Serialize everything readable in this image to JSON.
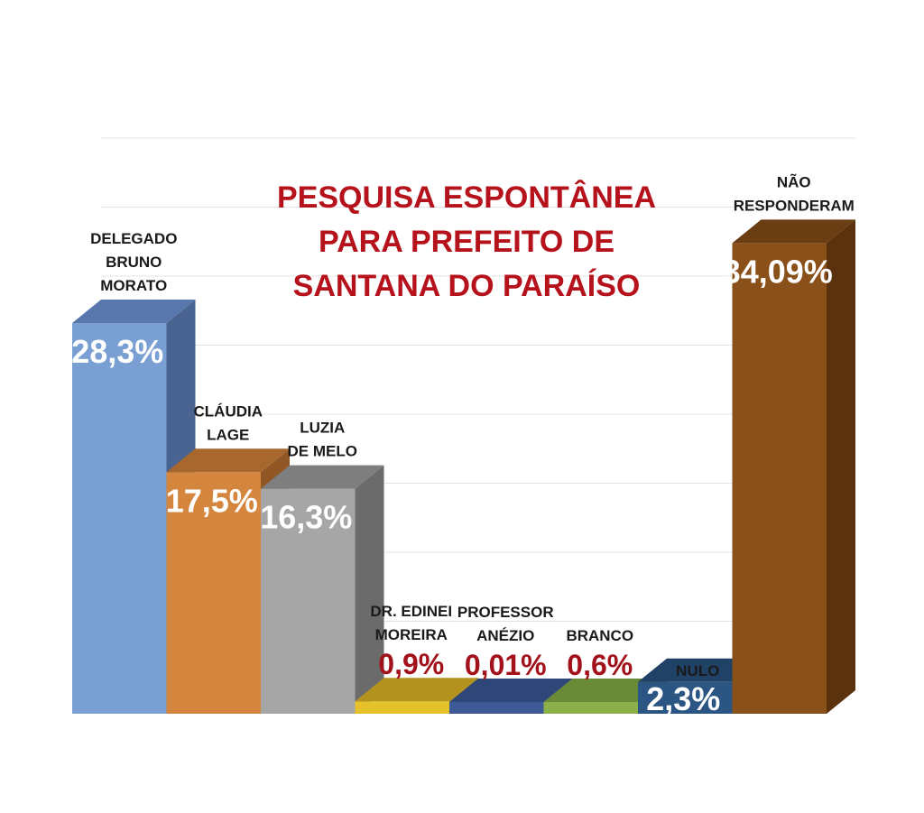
{
  "chart_data": {
    "type": "bar",
    "title_lines": [
      "PESQUISA ESPONTÂNEA",
      "PARA PREFEITO DE",
      "SANTANA DO PARAÍSO"
    ],
    "xlabel": "",
    "ylabel": "",
    "ylim": [
      0,
      40
    ],
    "grid": true,
    "legend": "none",
    "categories": [
      {
        "label_lines": [
          "DELEGADO",
          "BRUNO",
          "MORATO"
        ],
        "value": 28.3,
        "value_label": "28,3%",
        "color": "#7a9fd3",
        "top_color": "#5877ad",
        "side_color": "#4a6491",
        "label_style": "white"
      },
      {
        "label_lines": [
          "CLÁUDIA",
          "LAGE"
        ],
        "value": 17.5,
        "value_label": "17,5%",
        "color": "#d5863e",
        "top_color": "#a8672c",
        "side_color": "#905624",
        "label_style": "white"
      },
      {
        "label_lines": [
          "LUZIA",
          "DE MELO"
        ],
        "value": 16.3,
        "value_label": "16,3%",
        "color": "#a6a6a6",
        "top_color": "#7e7e7e",
        "side_color": "#6b6b6b",
        "label_style": "white"
      },
      {
        "label_lines": [
          "DR. EDINEI",
          "MOREIRA"
        ],
        "value": 0.9,
        "value_label": "0,9%",
        "color": "#e6c22a",
        "top_color": "#b3931d",
        "side_color": "#987c17",
        "label_style": "red"
      },
      {
        "label_lines": [
          "PROFESSOR",
          "ANÉZIO"
        ],
        "value": 0.01,
        "value_label": "0,01%",
        "color": "#3e5a96",
        "top_color": "#2f4678",
        "side_color": "#283c66",
        "label_style": "red"
      },
      {
        "label_lines": [
          "BRANCO"
        ],
        "value": 0.6,
        "value_label": "0,6%",
        "color": "#8bb04a",
        "top_color": "#6a8a37",
        "side_color": "#5a752e",
        "label_style": "red"
      },
      {
        "label_lines": [
          "NULO"
        ],
        "value": 2.3,
        "value_label": "2,3%",
        "color": "#2b5582",
        "top_color": "#1f4266",
        "side_color": "#183654",
        "label_style": "white"
      },
      {
        "label_lines": [
          "NÃO",
          "RESPONDERAM"
        ],
        "value": 34.09,
        "value_label": "34,09%",
        "color": "#8a5019",
        "top_color": "#6b3d12",
        "side_color": "#5a320e",
        "label_style": "white"
      }
    ],
    "gridline_color": "#e3e3e3"
  }
}
